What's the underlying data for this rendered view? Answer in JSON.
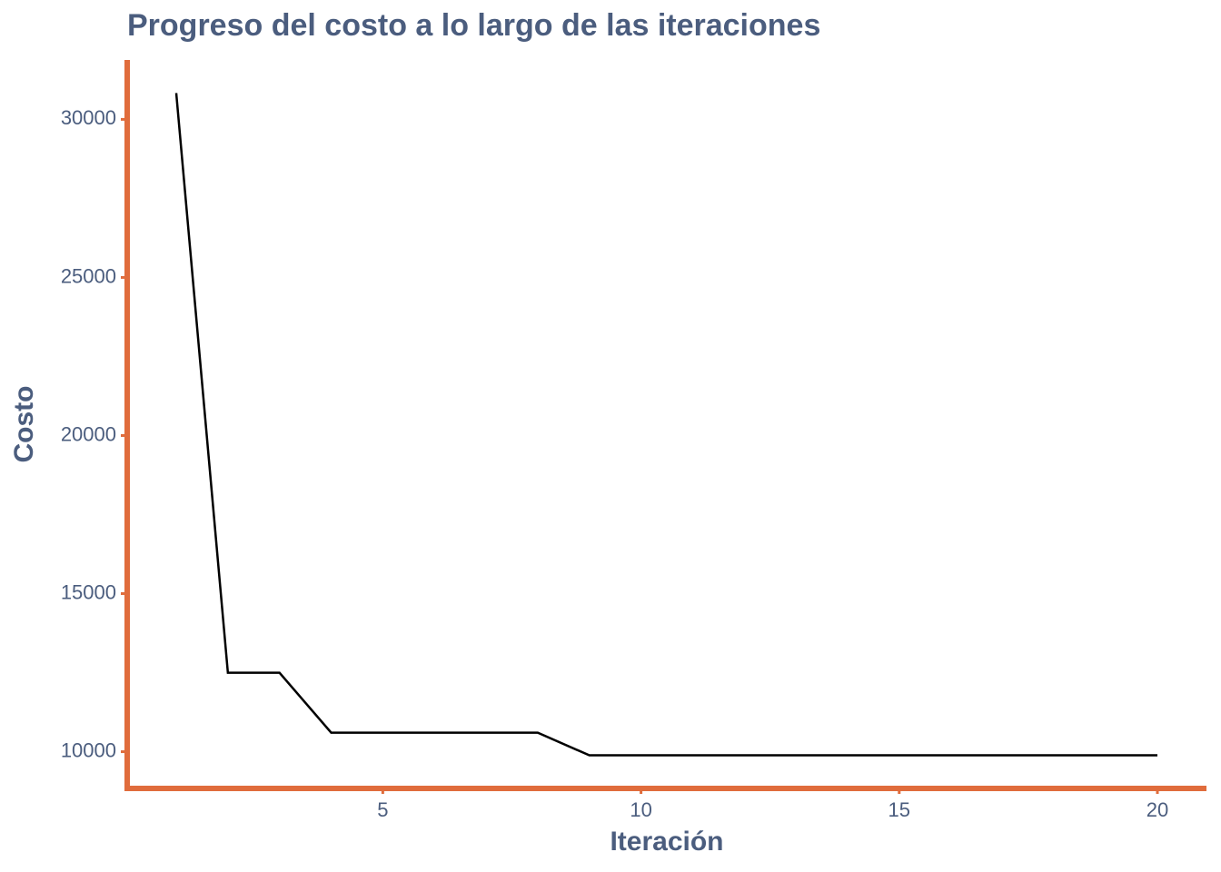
{
  "chart_data": {
    "type": "line",
    "title": "Progreso del costo a lo largo de las iteraciones",
    "x_label": "Iteración",
    "y_label": "Costo",
    "x": [
      1,
      2,
      3,
      4,
      5,
      6,
      7,
      8,
      9,
      10,
      11,
      12,
      13,
      14,
      15,
      16,
      17,
      18,
      19,
      20
    ],
    "series": [
      {
        "name": "Costo",
        "color": "#000000",
        "values": [
          30832,
          12496,
          12496,
          10603,
          10603,
          10603,
          10603,
          10603,
          9885,
          9885,
          9885,
          9885,
          9885,
          9885,
          9885,
          9885,
          9885,
          9885,
          9885,
          9885
        ]
      }
    ],
    "xlim": [
      0.05,
      20.95
    ],
    "xticks": [
      5,
      10,
      15,
      20
    ],
    "ylim": [
      8838,
      31879
    ],
    "yticks": [
      10000,
      15000,
      20000,
      25000,
      30000
    ],
    "axis_color": "#e06c3c",
    "grid": false
  }
}
